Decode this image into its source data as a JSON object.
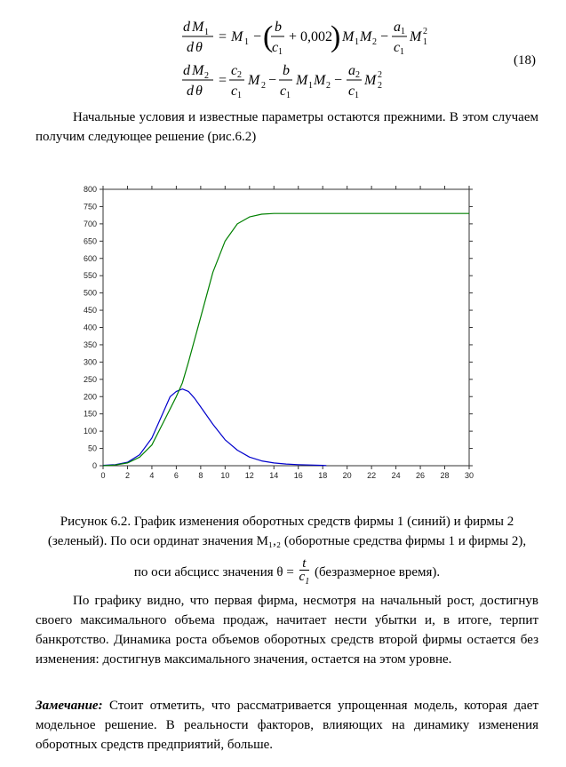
{
  "equations": {
    "number": "(18)"
  },
  "text": {
    "intro": "Начальные условия и известные параметры остаются прежними. В этом случаем получим следующее решение (рис.6.2)",
    "caption": "Рисунок 6.2. График изменения оборотных средств фирмы 1 (синий) и фирмы 2 (зеленый). По оси ординат значения M₁,₂ (оборотные средства фирмы 1 и фирмы 2),",
    "caption_line3_prefix": "по оси абсцисс значения θ =",
    "caption_line3_suffix": "(безразмерное время).",
    "analysis": "По графику видно, что первая фирма, несмотря на начальный рост, достигнув своего максимального объема продаж, начитает нести убытки и, в итоге, терпит банкротство. Динамика роста объемов оборотных средств второй фирмы остается без изменения: достигнув максимального значения, остается на этом уровне.",
    "remark_label": "Замечание:",
    "remark_body": "Стоит отметить, что рассматривается упрощенная модель, которая дает модельное решение. В реальности факторов, влияющих на динамику изменения оборотных средств предприятий, больше."
  },
  "chart_data": {
    "type": "line",
    "title": "",
    "xlabel": "",
    "ylabel": "",
    "xlim": [
      0,
      30
    ],
    "ylim": [
      0,
      800
    ],
    "xticks": [
      0,
      2,
      4,
      6,
      8,
      10,
      12,
      14,
      16,
      18,
      20,
      22,
      24,
      26,
      28,
      30
    ],
    "yticks": [
      0,
      50,
      100,
      150,
      200,
      250,
      300,
      350,
      400,
      450,
      500,
      550,
      600,
      650,
      700,
      750,
      800
    ],
    "grid": false,
    "colors": {
      "firm1": "#0000cc",
      "firm2": "#008000"
    },
    "series": [
      {
        "x": [
          0,
          1,
          2,
          3,
          4,
          5,
          5.5,
          6,
          6.5,
          7,
          7.5,
          8,
          9,
          10,
          11,
          12,
          13,
          14,
          15,
          16,
          17,
          18,
          18.3
        ],
        "y": [
          1,
          3,
          10,
          32,
          80,
          160,
          200,
          215,
          222,
          215,
          195,
          170,
          120,
          75,
          45,
          25,
          14,
          8,
          5,
          3,
          2,
          1,
          0.5
        ]
      },
      {
        "x": [
          0,
          1,
          2,
          3,
          4,
          5,
          6,
          6.5,
          7,
          8,
          9,
          10,
          11,
          12,
          13,
          14,
          16,
          18,
          20,
          25,
          30
        ],
        "y": [
          0,
          2,
          8,
          25,
          60,
          130,
          200,
          240,
          300,
          430,
          560,
          650,
          700,
          720,
          728,
          730,
          730,
          730,
          730,
          730,
          730
        ]
      }
    ]
  }
}
